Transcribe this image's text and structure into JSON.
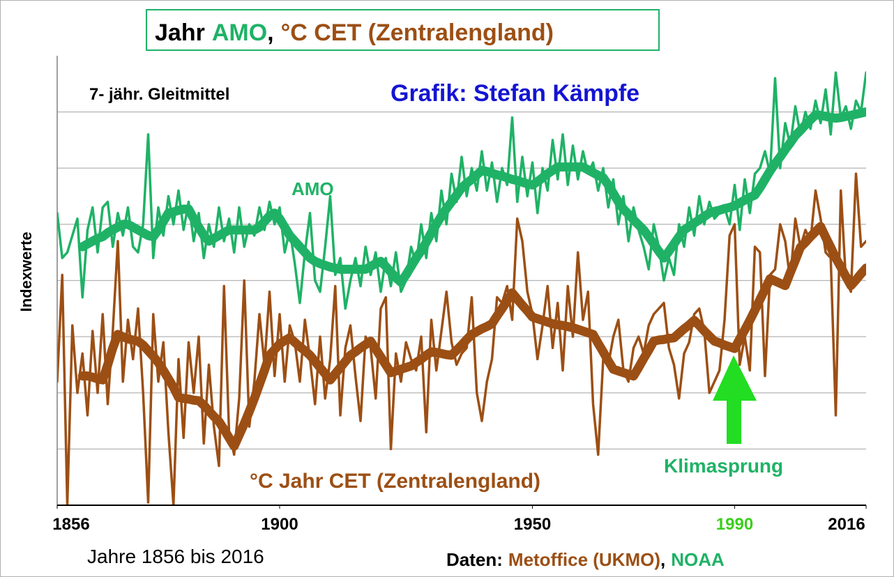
{
  "chart_data": {
    "type": "line",
    "title_parts": [
      {
        "text": "Jahr",
        "color": "#000000"
      },
      {
        "text": "AMO",
        "color": "#1fb266"
      },
      {
        "text": ",",
        "color": "#000000"
      },
      {
        "text": "°C CET (Zentralengland)",
        "color": "#9c4f14"
      }
    ],
    "ylabel": "Indexwerte",
    "xlabel": "Jahre 1856 bis 2016",
    "source_parts": [
      {
        "text": "Daten:",
        "color": "#000000"
      },
      {
        "text": "Metoffice (UKMO)",
        "color": "#9c4f14"
      },
      {
        "text": ",",
        "color": "#000000"
      },
      {
        "text": "NOAA",
        "color": "#1fb266"
      }
    ],
    "annotations": [
      {
        "text": "7- jähr. Gleitmittel",
        "color": "#000000"
      },
      {
        "text": "Grafik: Stefan Kämpfe",
        "color": "#1414d2"
      },
      {
        "text": "AMO",
        "color": "#1fb266"
      },
      {
        "text": "°C Jahr CET (Zentralengland)",
        "color": "#9c4f14"
      },
      {
        "text": "Klimasprung",
        "color": "#1fb266"
      }
    ],
    "xlim": [
      1856,
      2016
    ],
    "xticks": [
      1856,
      1900,
      1950,
      1990,
      2016
    ],
    "xtick_colors": [
      "#000000",
      "#000000",
      "#000000",
      "#3ccf1e",
      "#000000"
    ],
    "ylim": [
      0,
      8
    ],
    "yticks": [
      1,
      2,
      3,
      4,
      5,
      6,
      7
    ],
    "grid": true,
    "x": [
      1856,
      1857,
      1858,
      1859,
      1860,
      1861,
      1862,
      1863,
      1864,
      1865,
      1866,
      1867,
      1868,
      1869,
      1870,
      1871,
      1872,
      1873,
      1874,
      1875,
      1876,
      1877,
      1878,
      1879,
      1880,
      1881,
      1882,
      1883,
      1884,
      1885,
      1886,
      1887,
      1888,
      1889,
      1890,
      1891,
      1892,
      1893,
      1894,
      1895,
      1896,
      1897,
      1898,
      1899,
      1900,
      1901,
      1902,
      1903,
      1904,
      1905,
      1906,
      1907,
      1908,
      1909,
      1910,
      1911,
      1912,
      1913,
      1914,
      1915,
      1916,
      1917,
      1918,
      1919,
      1920,
      1921,
      1922,
      1923,
      1924,
      1925,
      1926,
      1927,
      1928,
      1929,
      1930,
      1931,
      1932,
      1933,
      1934,
      1935,
      1936,
      1937,
      1938,
      1939,
      1940,
      1941,
      1942,
      1943,
      1944,
      1945,
      1946,
      1947,
      1948,
      1949,
      1950,
      1951,
      1952,
      1953,
      1954,
      1955,
      1956,
      1957,
      1958,
      1959,
      1960,
      1961,
      1962,
      1963,
      1964,
      1965,
      1966,
      1967,
      1968,
      1969,
      1970,
      1971,
      1972,
      1973,
      1974,
      1975,
      1976,
      1977,
      1978,
      1979,
      1980,
      1981,
      1982,
      1983,
      1984,
      1985,
      1986,
      1987,
      1988,
      1989,
      1990,
      1991,
      1992,
      1993,
      1994,
      1995,
      1996,
      1997,
      1998,
      1999,
      2000,
      2001,
      2002,
      2003,
      2004,
      2005,
      2006,
      2007,
      2008,
      2009,
      2010,
      2011,
      2012,
      2013,
      2014,
      2015,
      2016
    ],
    "series": [
      {
        "color": "#1fb266",
        "line_width": 3.5,
        "values": [
          5.2,
          4.4,
          4.5,
          4.8,
          5.1,
          3.7,
          4.9,
          5.3,
          4.5,
          5.3,
          5.4,
          4.6,
          5.2,
          4.8,
          5.3,
          4.6,
          4.5,
          5.0,
          6.6,
          4.4,
          5.3,
          4.8,
          5.5,
          5.0,
          5.6,
          4.9,
          5.4,
          4.7,
          5.2,
          4.4,
          5.0,
          4.6,
          5.3,
          4.7,
          5.1,
          4.5,
          5.3,
          4.6,
          5.0,
          4.8,
          5.3,
          4.9,
          5.4,
          5.0,
          5.3,
          4.5,
          4.9,
          4.3,
          3.6,
          4.5,
          5.2,
          4.0,
          3.8,
          4.6,
          5.5,
          4.1,
          4.4,
          3.5,
          4.0,
          4.4,
          3.9,
          4.6,
          4.1,
          4.5,
          3.8,
          4.4,
          3.9,
          4.5,
          3.8,
          4.0,
          4.6,
          4.3,
          5.0,
          4.4,
          5.2,
          4.7,
          5.6,
          5.0,
          5.9,
          5.4,
          6.2,
          5.5,
          6.0,
          5.6,
          6.3,
          5.6,
          6.1,
          5.4,
          6.0,
          5.7,
          6.9,
          5.4,
          6.2,
          5.5,
          6.1,
          5.2,
          6.0,
          5.6,
          6.5,
          5.8,
          6.6,
          5.7,
          6.4,
          5.8,
          6.3,
          5.9,
          6.1,
          5.6,
          6.0,
          5.3,
          5.8,
          5.0,
          5.5,
          4.7,
          5.3,
          4.9,
          4.6,
          4.2,
          5.0,
          4.6,
          4.0,
          4.4,
          4.1,
          5.0,
          4.6,
          5.3,
          4.8,
          5.5,
          5.0,
          5.4,
          5.1,
          5.2,
          5.3,
          5.0,
          5.7,
          4.9,
          5.8,
          5.2,
          5.9,
          6.0,
          6.3,
          5.9,
          7.6,
          6.0,
          6.8,
          6.4,
          7.1,
          6.6,
          7.0,
          6.7,
          7.2,
          6.8,
          7.4,
          6.6,
          7.7,
          6.9,
          7.1,
          6.7,
          7.2,
          7.0,
          7.7
        ]
      },
      {
        "color": "#1fb266",
        "line_width": 13,
        "values": [
          null,
          null,
          null,
          null,
          null,
          4.6,
          4.65,
          4.7,
          4.75,
          4.78,
          4.85,
          4.9,
          4.95,
          5.0,
          5.0,
          4.95,
          4.9,
          4.85,
          4.8,
          4.78,
          4.9,
          5.05,
          5.2,
          5.22,
          5.25,
          5.27,
          5.27,
          5.1,
          4.95,
          4.8,
          4.7,
          4.75,
          4.8,
          4.85,
          4.9,
          4.9,
          4.9,
          4.9,
          4.9,
          4.9,
          4.95,
          5.05,
          5.15,
          5.2,
          5.1,
          4.95,
          4.8,
          4.7,
          4.6,
          4.5,
          4.4,
          4.34,
          4.3,
          4.27,
          4.24,
          4.22,
          4.2,
          4.2,
          4.2,
          4.2,
          4.2,
          4.2,
          4.25,
          4.3,
          4.34,
          4.25,
          4.15,
          4.05,
          3.97,
          4.1,
          4.25,
          4.4,
          4.53,
          4.68,
          4.85,
          5.0,
          5.15,
          5.28,
          5.4,
          5.52,
          5.65,
          5.73,
          5.8,
          5.88,
          5.96,
          5.94,
          5.91,
          5.88,
          5.86,
          5.83,
          5.8,
          5.78,
          5.75,
          5.72,
          5.7,
          5.76,
          5.83,
          5.9,
          5.96,
          6.02,
          6.02,
          6.02,
          6.02,
          6.02,
          6.02,
          5.97,
          5.92,
          5.87,
          5.83,
          5.7,
          5.55,
          5.4,
          5.27,
          5.18,
          5.08,
          4.99,
          4.9,
          4.78,
          4.65,
          4.52,
          4.4,
          4.52,
          4.65,
          4.78,
          4.9,
          4.96,
          5.02,
          5.08,
          5.14,
          5.2,
          5.23,
          5.25,
          5.28,
          5.3,
          5.33,
          5.38,
          5.43,
          5.48,
          5.52,
          5.65,
          5.8,
          5.95,
          6.08,
          6.2,
          6.33,
          6.45,
          6.58,
          6.67,
          6.77,
          6.86,
          6.95,
          6.94,
          6.92,
          6.9,
          6.89,
          6.9,
          6.92,
          6.94,
          6.96,
          6.98,
          7.0
        ]
      },
      {
        "color": "#9c4f14",
        "line_width": 3.5,
        "values": [
          2.2,
          4.1,
          0.0,
          3.2,
          2.0,
          2.7,
          1.6,
          3.1,
          2.0,
          3.4,
          1.8,
          3.1,
          4.7,
          2.2,
          3.3,
          2.6,
          3.5,
          2.0,
          0.05,
          3.4,
          2.2,
          2.9,
          1.3,
          0.0,
          2.6,
          1.2,
          2.9,
          2.0,
          3.0,
          1.1,
          2.5,
          1.4,
          0.7,
          3.9,
          1.3,
          0.9,
          1.9,
          4.0,
          1.4,
          2.2,
          3.4,
          2.5,
          3.8,
          2.3,
          3.4,
          2.2,
          3.2,
          2.9,
          2.2,
          3.3,
          2.6,
          1.8,
          3.0,
          1.9,
          2.6,
          3.9,
          1.6,
          2.8,
          3.2,
          2.3,
          1.5,
          3.0,
          2.8,
          1.9,
          3.5,
          3.7,
          1.0,
          2.7,
          2.2,
          2.9,
          2.6,
          2.4,
          3.0,
          1.3,
          3.3,
          2.4,
          3.1,
          3.8,
          2.9,
          2.5,
          2.7,
          2.8,
          3.7,
          2.0,
          1.5,
          2.2,
          2.6,
          3.7,
          3.6,
          3.9,
          3.3,
          5.1,
          4.7,
          3.8,
          3.4,
          2.6,
          3.2,
          3.9,
          2.8,
          3.6,
          2.4,
          3.9,
          3.0,
          4.5,
          3.3,
          3.8,
          1.8,
          0.9,
          2.6,
          2.5,
          3.0,
          3.3,
          2.4,
          2.2,
          2.8,
          3.0,
          2.7,
          3.2,
          3.4,
          3.5,
          3.6,
          2.8,
          2.5,
          1.9,
          2.7,
          2.9,
          3.4,
          3.5,
          3.1,
          2.0,
          2.2,
          2.4,
          3.3,
          4.8,
          5.0,
          2.5,
          3.0,
          2.4,
          4.6,
          4.5,
          2.3,
          4.1,
          4.2,
          5.0,
          4.7,
          4.0,
          5.1,
          4.6,
          4.9,
          4.7,
          5.6,
          5.1,
          4.5,
          4.4,
          1.6,
          5.6,
          4.0,
          3.8,
          5.9,
          4.6,
          4.7
        ]
      },
      {
        "color": "#9c4f14",
        "line_width": 13,
        "values": [
          null,
          null,
          null,
          null,
          null,
          2.3,
          2.3,
          2.28,
          2.25,
          2.23,
          2.5,
          2.8,
          3.04,
          3.0,
          2.96,
          2.94,
          2.92,
          2.85,
          2.75,
          2.65,
          2.54,
          2.4,
          2.25,
          2.1,
          1.92,
          1.9,
          1.89,
          1.87,
          1.86,
          1.78,
          1.68,
          1.58,
          1.49,
          1.35,
          1.2,
          1.05,
          1.25,
          1.45,
          1.67,
          1.9,
          2.15,
          2.4,
          2.67,
          2.77,
          2.87,
          2.93,
          2.98,
          2.9,
          2.82,
          2.75,
          2.67,
          2.56,
          2.45,
          2.34,
          2.23,
          2.34,
          2.45,
          2.56,
          2.67,
          2.73,
          2.8,
          2.86,
          2.92,
          2.78,
          2.64,
          2.5,
          2.36,
          2.39,
          2.42,
          2.45,
          2.48,
          2.54,
          2.6,
          2.67,
          2.73,
          2.72,
          2.7,
          2.68,
          2.67,
          2.76,
          2.85,
          2.95,
          3.04,
          3.09,
          3.14,
          3.18,
          3.23,
          3.37,
          3.5,
          3.64,
          3.78,
          3.67,
          3.56,
          3.46,
          3.35,
          3.32,
          3.29,
          3.26,
          3.23,
          3.21,
          3.2,
          3.18,
          3.16,
          3.13,
          3.1,
          3.07,
          3.04,
          2.88,
          2.73,
          2.57,
          2.42,
          2.39,
          2.36,
          2.33,
          2.3,
          2.45,
          2.61,
          2.76,
          2.92,
          2.94,
          2.95,
          2.97,
          2.98,
          3.06,
          3.14,
          3.21,
          3.29,
          3.2,
          3.1,
          3.01,
          2.92,
          2.89,
          2.85,
          2.82,
          2.79,
          2.96,
          3.12,
          3.29,
          3.47,
          3.66,
          3.84,
          4.03,
          3.99,
          3.95,
          3.91,
          4.14,
          4.36,
          4.59,
          4.68,
          4.78,
          4.87,
          4.96,
          4.77,
          4.59,
          4.4,
          4.24,
          4.07,
          3.91,
          4.01,
          4.12,
          4.22
        ]
      }
    ]
  }
}
